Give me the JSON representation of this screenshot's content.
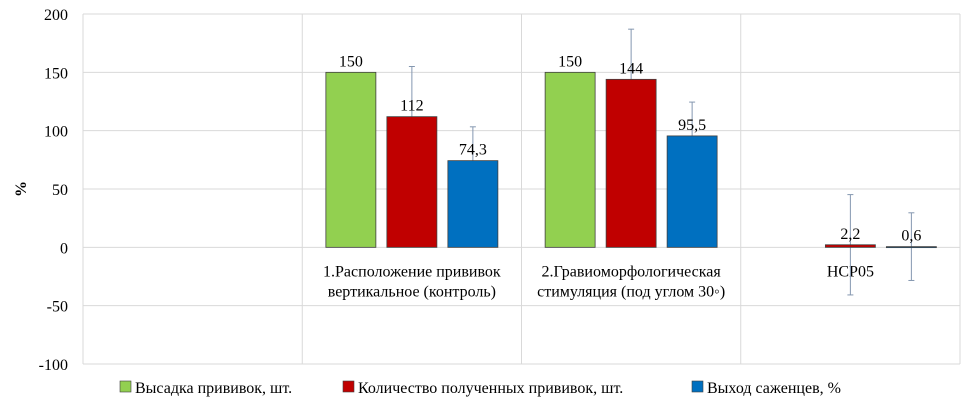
{
  "chart_data": {
    "type": "bar",
    "ylabel": "%",
    "ylim": [
      -100,
      200
    ],
    "yticks": [
      -100,
      -50,
      0,
      50,
      100,
      150,
      200
    ],
    "grid": true,
    "legend_position": "bottom",
    "categories": [
      [
        "",
        ""
      ],
      [
        "1.Расположение прививок",
        "вертикальное (контроль)"
      ],
      [
        "2.Гравиоморфологическая",
        "стимуляция (под углом 30◦)"
      ],
      [
        "НСР05",
        ""
      ]
    ],
    "series": [
      {
        "name": "Высадка прививок, шт.",
        "color": "#92d050",
        "values": [
          null,
          150,
          150,
          null
        ],
        "labels": [
          "",
          "150",
          "150",
          ""
        ],
        "errors": [
          null,
          0,
          0,
          null
        ]
      },
      {
        "name": "Количество полученных прививок, шт.",
        "color": "#c00000",
        "values": [
          null,
          112,
          144,
          2.2
        ],
        "labels": [
          "",
          "112",
          "144",
          "2,2"
        ],
        "errors": [
          null,
          43,
          43,
          43
        ]
      },
      {
        "name": "Выход саженцев, %",
        "color": "#0070c0",
        "values": [
          null,
          74.3,
          95.5,
          0.6
        ],
        "labels": [
          "",
          "74,3",
          "95,5",
          "0,6"
        ],
        "errors": [
          null,
          29,
          29,
          29
        ]
      }
    ]
  }
}
